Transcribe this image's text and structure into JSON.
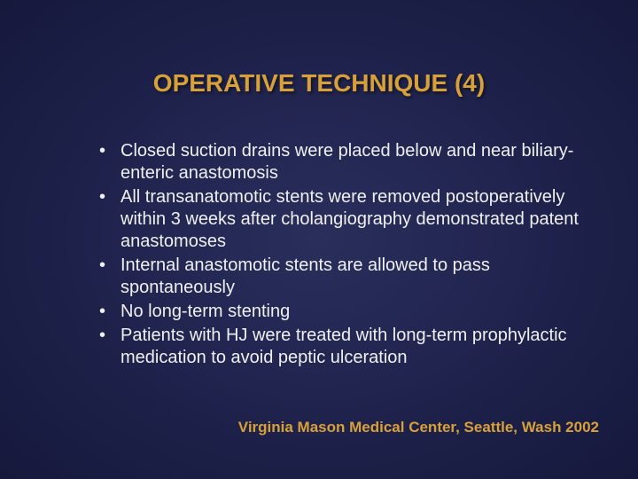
{
  "title": {
    "text": "OPERATIVE TECHNIQUE (4)",
    "color": "#d8a038",
    "fontsize": 28
  },
  "bullets": {
    "color": "#f0f0f0",
    "fontsize": 20,
    "line_height": 1.25,
    "items": [
      "Closed suction drains were placed below and near biliary-enteric anastomosis",
      "All transanatomotic stents were removed postoperatively within 3 weeks after cholangiography demonstrated patent anastomoses",
      "Internal anastomotic stents are allowed to pass spontaneously",
      "No long-term stenting",
      "Patients with HJ were treated with long-term prophylactic medication to avoid peptic ulceration"
    ]
  },
  "footer": {
    "text": "Virginia Mason Medical Center, Seattle, Wash 2002",
    "color": "#d8a038",
    "fontsize": 17
  },
  "background": {
    "center_color": "#2a2e5a",
    "edge_color": "#090b20"
  }
}
